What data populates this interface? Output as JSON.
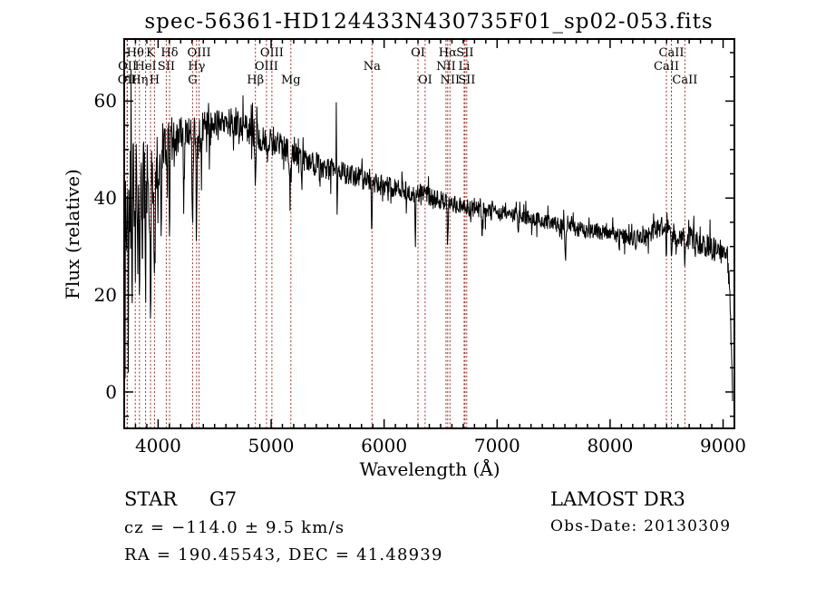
{
  "title": "spec-56361-HD124433N430735F01_sp02-053.fits",
  "annotations": {
    "class_label": "STAR",
    "subclass": "G7",
    "cz_line": "cz = −114.0 ± 9.5 km/s",
    "radec_line": "RA = 190.45543, DEC =  41.48939",
    "survey": "LAMOST DR3",
    "obsdate_line": "Obs-Date: 20130309"
  },
  "colors": {
    "background": "#ffffff",
    "spectrum": "#000000",
    "frame": "#000000",
    "line_marker": "#9e2f28",
    "text": "#000000"
  },
  "chart_data": {
    "type": "line",
    "title": "spec-56361-HD124433N430735F01_sp02-053.fits",
    "xlabel": "Wavelength (Å)",
    "ylabel": "Flux (relative)",
    "x_range": [
      3700,
      9100
    ],
    "y_range": [
      -7.5,
      72.8
    ],
    "x_ticks": [
      4000,
      5000,
      6000,
      7000,
      8000,
      9000
    ],
    "y_ticks": [
      0,
      20,
      40,
      60
    ],
    "x_minor_step": 100,
    "y_minor_step": 5,
    "grid": false,
    "seed": 20130309,
    "continuum": [
      [
        3700,
        35
      ],
      [
        3740,
        39
      ],
      [
        3800,
        43
      ],
      [
        3860,
        44
      ],
      [
        3920,
        43
      ],
      [
        3980,
        45
      ],
      [
        4040,
        49
      ],
      [
        4120,
        51.5
      ],
      [
        4200,
        53
      ],
      [
        4300,
        53.5
      ],
      [
        4400,
        54.5
      ],
      [
        4500,
        55.5
      ],
      [
        4650,
        55.5
      ],
      [
        4800,
        54
      ],
      [
        4900,
        52.5
      ],
      [
        5000,
        51.5
      ],
      [
        5100,
        50.5
      ],
      [
        5200,
        49
      ],
      [
        5300,
        48
      ],
      [
        5400,
        47
      ],
      [
        5500,
        46.3
      ],
      [
        5600,
        45.5
      ],
      [
        5700,
        44.8
      ],
      [
        5800,
        44
      ],
      [
        5900,
        43.2
      ],
      [
        6000,
        42.5
      ],
      [
        6100,
        42
      ],
      [
        6200,
        41.5
      ],
      [
        6300,
        41
      ],
      [
        6400,
        40.3
      ],
      [
        6500,
        39.6
      ],
      [
        6600,
        38.8
      ],
      [
        6700,
        38.2
      ],
      [
        6800,
        37.8
      ],
      [
        6900,
        37.3
      ],
      [
        7000,
        37
      ],
      [
        7100,
        36.7
      ],
      [
        7200,
        36.3
      ],
      [
        7300,
        35.8
      ],
      [
        7400,
        35.3
      ],
      [
        7500,
        34.8
      ],
      [
        7600,
        34
      ],
      [
        7700,
        33.7
      ],
      [
        7800,
        33.3
      ],
      [
        7900,
        33
      ],
      [
        8000,
        32.6
      ],
      [
        8100,
        32.2
      ],
      [
        8200,
        31.9
      ],
      [
        8300,
        32.2
      ],
      [
        8400,
        33.2
      ],
      [
        8460,
        34.3
      ],
      [
        8520,
        33.5
      ],
      [
        8580,
        31.8
      ],
      [
        8640,
        31.5
      ],
      [
        8700,
        32.5
      ],
      [
        8760,
        30.8
      ],
      [
        8820,
        30.2
      ],
      [
        8880,
        30
      ],
      [
        8940,
        29.2
      ],
      [
        9000,
        28.6
      ],
      [
        9040,
        27.5
      ],
      [
        9058,
        22
      ],
      [
        9070,
        12
      ],
      [
        9082,
        3
      ]
    ],
    "noise_amplitude": [
      [
        3700,
        13
      ],
      [
        3750,
        12
      ],
      [
        3820,
        11
      ],
      [
        3900,
        9.5
      ],
      [
        3990,
        7
      ],
      [
        4060,
        5
      ],
      [
        4150,
        4
      ],
      [
        4250,
        3.5
      ],
      [
        4400,
        3.2
      ],
      [
        4700,
        3
      ],
      [
        4900,
        2.8
      ],
      [
        5100,
        2.7
      ],
      [
        5300,
        2.6
      ],
      [
        5600,
        2.4
      ],
      [
        5900,
        2.2
      ],
      [
        6200,
        2.1
      ],
      [
        6500,
        2.0
      ],
      [
        6800,
        1.8
      ],
      [
        7100,
        1.6
      ],
      [
        7400,
        1.6
      ],
      [
        7700,
        1.6
      ],
      [
        8000,
        1.6
      ],
      [
        8300,
        1.8
      ],
      [
        8600,
        2.2
      ],
      [
        8800,
        2.4
      ],
      [
        9000,
        2.6
      ],
      [
        9082,
        2.6
      ]
    ],
    "absorption_features": [
      [
        3706,
        28,
        3
      ],
      [
        3737,
        26,
        2.5
      ],
      [
        3770,
        30,
        2.5
      ],
      [
        3798,
        24,
        2.5
      ],
      [
        3820,
        22,
        2
      ],
      [
        3835,
        26,
        2.5
      ],
      [
        3860,
        18,
        2
      ],
      [
        3889,
        24,
        3
      ],
      [
        3933,
        29,
        4
      ],
      [
        3968,
        27,
        4
      ],
      [
        4026,
        12,
        2
      ],
      [
        4077,
        10,
        2
      ],
      [
        4101,
        24,
        3.5
      ],
      [
        4144,
        8,
        2
      ],
      [
        4226,
        14,
        3
      ],
      [
        4305,
        19,
        5
      ],
      [
        4340,
        23,
        3.5
      ],
      [
        4383,
        10,
        2.5
      ],
      [
        4455,
        7,
        2
      ],
      [
        4531,
        6,
        2
      ],
      [
        4668,
        6,
        2
      ],
      [
        4861,
        11,
        3.5
      ],
      [
        4920,
        5,
        2
      ],
      [
        5167,
        10,
        3.5
      ],
      [
        5270,
        5,
        3
      ],
      [
        5430,
        5,
        3
      ],
      [
        5585,
        13,
        1.8
      ],
      [
        5890,
        9,
        4
      ],
      [
        6276,
        9,
        4
      ],
      [
        6563,
        9,
        3.5
      ],
      [
        6867,
        6,
        4
      ],
      [
        7186,
        4,
        4
      ],
      [
        7605,
        6,
        5
      ],
      [
        8227,
        4,
        3
      ],
      [
        8498,
        5,
        3
      ],
      [
        8542,
        6,
        3
      ],
      [
        8662,
        6,
        3
      ],
      [
        8750,
        4,
        3
      ]
    ],
    "emission_spikes": [
      [
        5577,
        16,
        1.4
      ],
      [
        8827,
        4,
        2
      ]
    ],
    "spectral_lines": [
      {
        "name": "OII",
        "wavelength": 3726,
        "row": 3
      },
      {
        "name": "OII",
        "wavelength": 3729,
        "row": 2
      },
      {
        "name": "Hθ",
        "wavelength": 3798,
        "row": 1
      },
      {
        "name": "Hη",
        "wavelength": 3835,
        "row": 3
      },
      {
        "name": "HeI",
        "wavelength": 3889,
        "row": 2
      },
      {
        "name": "K",
        "wavelength": 3933,
        "row": 1
      },
      {
        "name": "H",
        "wavelength": 3968,
        "row": 3
      },
      {
        "name": "SII",
        "wavelength": 4072,
        "row": 2
      },
      {
        "name": "Hδ",
        "wavelength": 4101,
        "row": 1
      },
      {
        "name": "G",
        "wavelength": 4305,
        "row": 3
      },
      {
        "name": "Hγ",
        "wavelength": 4340,
        "row": 2
      },
      {
        "name": "OIII",
        "wavelength": 4363,
        "row": 1
      },
      {
        "name": "Hβ",
        "wavelength": 4861,
        "row": 3
      },
      {
        "name": "OIII",
        "wavelength": 4959,
        "row": 2
      },
      {
        "name": "OIII",
        "wavelength": 5007,
        "row": 1
      },
      {
        "name": "Mg",
        "wavelength": 5175,
        "row": 3
      },
      {
        "name": "Na",
        "wavelength": 5893,
        "row": 2
      },
      {
        "name": "OI",
        "wavelength": 6300,
        "row": 1
      },
      {
        "name": "OI",
        "wavelength": 6363,
        "row": 3
      },
      {
        "name": "NII",
        "wavelength": 6548,
        "row": 2
      },
      {
        "name": "Hα",
        "wavelength": 6563,
        "row": 1
      },
      {
        "name": "NII",
        "wavelength": 6583,
        "row": 3
      },
      {
        "name": "Li",
        "wavelength": 6708,
        "row": 2
      },
      {
        "name": "SII",
        "wavelength": 6716,
        "row": 1
      },
      {
        "name": "SII",
        "wavelength": 6731,
        "row": 3
      },
      {
        "name": "CaII",
        "wavelength": 8498,
        "row": 2
      },
      {
        "name": "CaII",
        "wavelength": 8542,
        "row": 1
      },
      {
        "name": "CaII",
        "wavelength": 8662,
        "row": 3
      }
    ]
  }
}
